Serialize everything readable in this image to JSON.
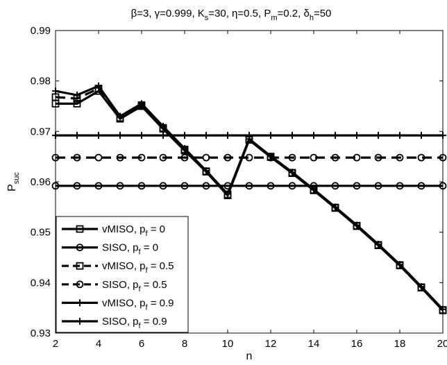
{
  "chart_data": {
    "type": "line",
    "title_parts": [
      {
        "text": "β=3, γ=0.999, K",
        "sub": false
      },
      {
        "text": "s",
        "sub": true
      },
      {
        "text": "=30, η=0.5, P",
        "sub": false
      },
      {
        "text": "m",
        "sub": true
      },
      {
        "text": "=0.2, δ",
        "sub": false
      },
      {
        "text": "h",
        "sub": true
      },
      {
        "text": "=50",
        "sub": false
      }
    ],
    "xlabel": "n",
    "ylabel_main": "P",
    "ylabel_sub": "suc",
    "xlim": [
      2,
      20
    ],
    "ylim": [
      0.93,
      0.99
    ],
    "x_ticks": [
      2,
      4,
      6,
      8,
      10,
      12,
      14,
      16,
      18,
      20
    ],
    "y_ticks": [
      0.93,
      0.94,
      0.95,
      0.96,
      0.97,
      0.98,
      0.99
    ],
    "y_tick_labels": [
      "0.93",
      "0.94",
      "0.95",
      "0.96",
      "0.97",
      "0.98",
      "0.99"
    ],
    "x": [
      2,
      3,
      4,
      5,
      6,
      7,
      8,
      9,
      10,
      11,
      12,
      13,
      14,
      15,
      16,
      17,
      18,
      19,
      20
    ],
    "grid": false,
    "legend_placement": "bottom-left",
    "series": [
      {
        "name": "vMISO, p",
        "name_sub": "f",
        "name_suffix": " = 0",
        "marker": "square",
        "dash": "solid",
        "values": [
          0.9755,
          0.9755,
          0.978,
          0.9725,
          0.975,
          0.9705,
          0.9662,
          0.962,
          0.9573,
          0.9683,
          0.9649,
          0.9617,
          0.9583,
          0.9548,
          0.9512,
          0.9474,
          0.9434,
          0.939,
          0.9345
        ]
      },
      {
        "name": "SISO, p",
        "name_sub": "f",
        "name_suffix": " = 0",
        "marker": "circle",
        "dash": "solid",
        "values": [
          0.9592,
          0.9592,
          0.9592,
          0.9592,
          0.9592,
          0.9592,
          0.9592,
          0.9592,
          0.9592,
          0.9592,
          0.9592,
          0.9592,
          0.9592,
          0.9592,
          0.9592,
          0.9592,
          0.9592,
          0.9592,
          0.9592
        ]
      },
      {
        "name": "vMISO, p",
        "name_sub": "f",
        "name_suffix": " = 0.5",
        "marker": "square",
        "dash": "dashed",
        "values": [
          0.9768,
          0.9765,
          0.9785,
          0.9727,
          0.9752,
          0.9707,
          0.9664,
          0.9621,
          0.9575,
          0.9684,
          0.965,
          0.9618,
          0.9584,
          0.9549,
          0.9513,
          0.9475,
          0.9435,
          0.9391,
          0.9346
        ]
      },
      {
        "name": "SISO, p",
        "name_sub": "f",
        "name_suffix": " = 0.5",
        "marker": "circle",
        "dash": "dashed",
        "values": [
          0.9648,
          0.9648,
          0.9648,
          0.9648,
          0.9648,
          0.9648,
          0.9648,
          0.9648,
          0.9648,
          0.9648,
          0.9648,
          0.9648,
          0.9648,
          0.9648,
          0.9648,
          0.9648,
          0.9648,
          0.9648,
          0.9648
        ]
      },
      {
        "name": "vMISO, p",
        "name_sub": "f",
        "name_suffix": " = 0.9",
        "marker": "plus",
        "dash": "solid",
        "values": [
          0.978,
          0.9772,
          0.979,
          0.973,
          0.9755,
          0.971,
          0.9666,
          0.9622,
          0.9576,
          0.9685,
          0.9651,
          0.9619,
          0.9585,
          0.955,
          0.9514,
          0.9476,
          0.9436,
          0.9392,
          0.9347
        ]
      },
      {
        "name": "SISO, p",
        "name_sub": "f",
        "name_suffix": " = 0.9",
        "marker": "plus",
        "dash": "solid",
        "values": [
          0.9692,
          0.9692,
          0.9692,
          0.9692,
          0.9692,
          0.9692,
          0.9692,
          0.9692,
          0.9692,
          0.9692,
          0.9692,
          0.9692,
          0.9692,
          0.9692,
          0.9692,
          0.9692,
          0.9692,
          0.9692,
          0.9692
        ]
      }
    ]
  }
}
